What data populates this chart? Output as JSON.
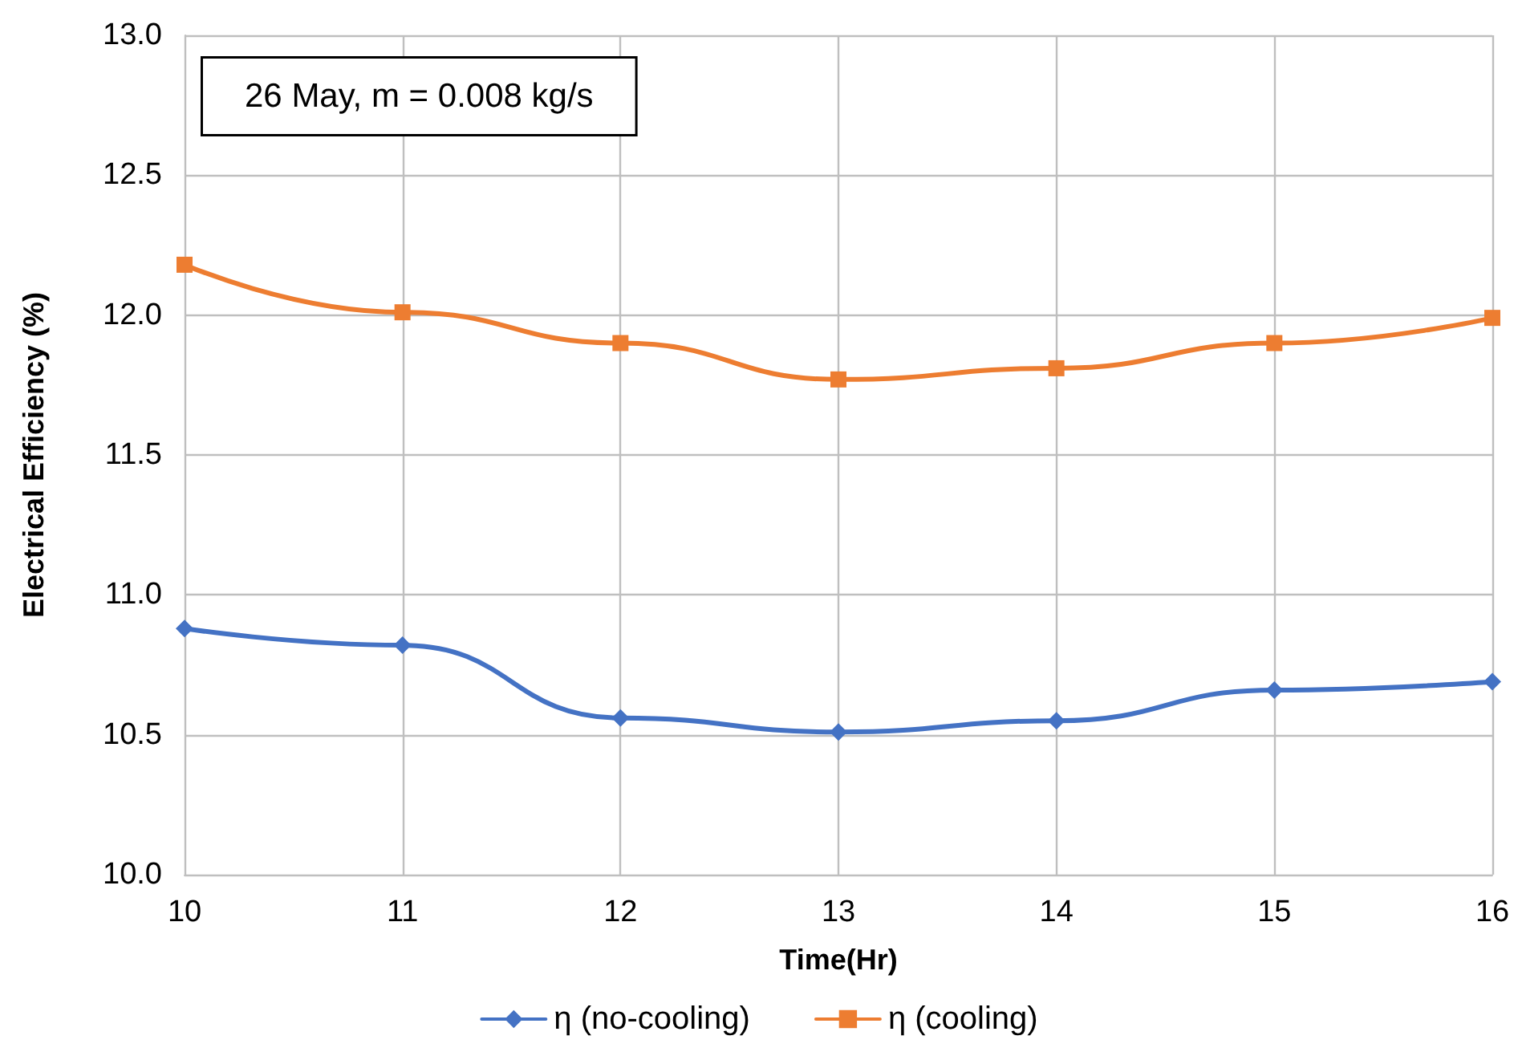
{
  "chart_data": {
    "type": "line",
    "xlabel": "Time(Hr)",
    "ylabel": "Electrical Efficiency (%)",
    "annotations": [
      "26 May, m = 0.008 kg/s"
    ],
    "x": [
      10,
      11,
      12,
      13,
      14,
      15,
      16
    ],
    "series": [
      {
        "name": "η (no-cooling)",
        "color": "#4472c4",
        "marker": "diamond",
        "values": [
          10.88,
          10.82,
          10.56,
          10.51,
          10.55,
          10.66,
          10.69
        ]
      },
      {
        "name": "η (cooling)",
        "color": "#ed7d31",
        "marker": "square",
        "values": [
          12.18,
          12.01,
          11.9,
          11.77,
          11.81,
          11.9,
          11.99
        ]
      }
    ],
    "xlim": [
      10,
      16
    ],
    "xticks": [
      10,
      11,
      12,
      13,
      14,
      15,
      16
    ],
    "ylim": [
      10,
      13
    ],
    "yticks": [
      {
        "value": 10,
        "label": "10.0"
      },
      {
        "value": 10.5,
        "label": "10.5"
      },
      {
        "value": 11,
        "label": "11.0"
      },
      {
        "value": 11.5,
        "label": "11.5"
      },
      {
        "value": 12,
        "label": "12.0"
      },
      {
        "value": 12.5,
        "label": "12.5"
      },
      {
        "value": 13,
        "label": "13.0"
      }
    ],
    "grid": true,
    "legend": "bottom",
    "line_style": "solid"
  }
}
